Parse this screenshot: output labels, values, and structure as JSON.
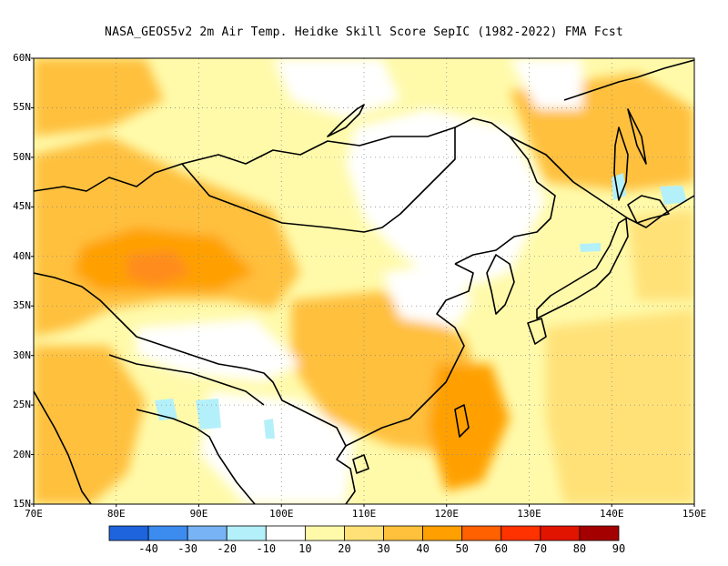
{
  "title": "NASA_GEOS5v2  2m Air Temp. Heidke Skill Score SepIC (1982-2022) FMA Fcst",
  "map": {
    "lat_labels": [
      "60N",
      "55N",
      "50N",
      "45N",
      "40N",
      "35N",
      "30N",
      "25N",
      "20N",
      "15N"
    ],
    "lon_labels": [
      "70E",
      "80E",
      "90E",
      "100E",
      "110E",
      "120E",
      "130E",
      "140E",
      "150E"
    ],
    "ocean_bg_color": "#ffffff",
    "coastline_color": "#000000",
    "grid_style": "dotted"
  },
  "colorbar": {
    "labels": [
      "-40",
      "-30",
      "-20",
      "-10",
      "10",
      "20",
      "30",
      "40",
      "50",
      "60",
      "70",
      "80",
      "90"
    ],
    "colors": [
      "#1e64dc",
      "#3c8cf0",
      "#78b4f5",
      "#b4f0fa",
      "#ffffff",
      "#fffaaa",
      "#ffe178",
      "#ffc03c",
      "#ffa000",
      "#ff6000",
      "#ff3200",
      "#e11400",
      "#a50000"
    ]
  }
}
